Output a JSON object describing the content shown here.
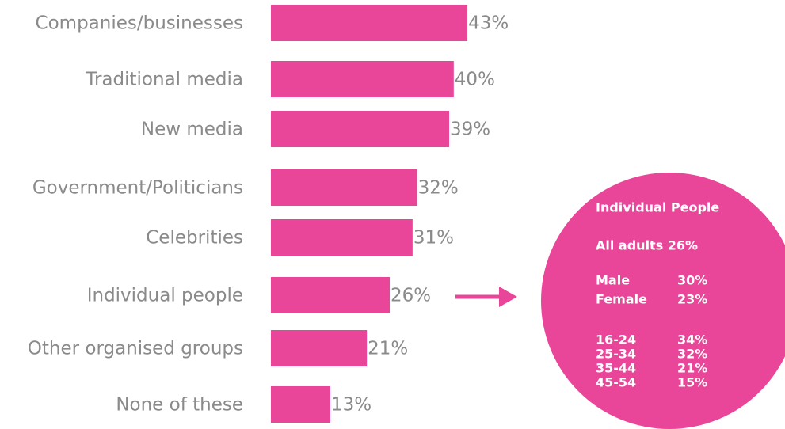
{
  "chart_data": {
    "type": "bar",
    "orientation": "horizontal",
    "color": "#e9469a",
    "categories": [
      "Companies/businesses",
      "Traditional media",
      "New media",
      "Government/Politicians",
      "Celebrities",
      "Individual people",
      "Other organised groups",
      "None of these"
    ],
    "values": [
      43,
      40,
      39,
      32,
      31,
      26,
      21,
      13
    ],
    "value_labels": [
      "43%",
      "40%",
      "39%",
      "32%",
      "31%",
      "26%",
      "21%",
      "13%"
    ],
    "callout": {
      "category": "Individual people",
      "title": "Individual People",
      "total": "All adults 26%",
      "groups": [
        [
          {
            "label": "Male",
            "value": "30%"
          },
          {
            "label": "Female",
            "value": "23%"
          }
        ],
        [
          {
            "label": "16-24",
            "value": "34%"
          },
          {
            "label": "25-34",
            "value": "32%"
          },
          {
            "label": "35-44",
            "value": "21%"
          },
          {
            "label": "45-54",
            "value": "15%"
          }
        ]
      ]
    }
  }
}
